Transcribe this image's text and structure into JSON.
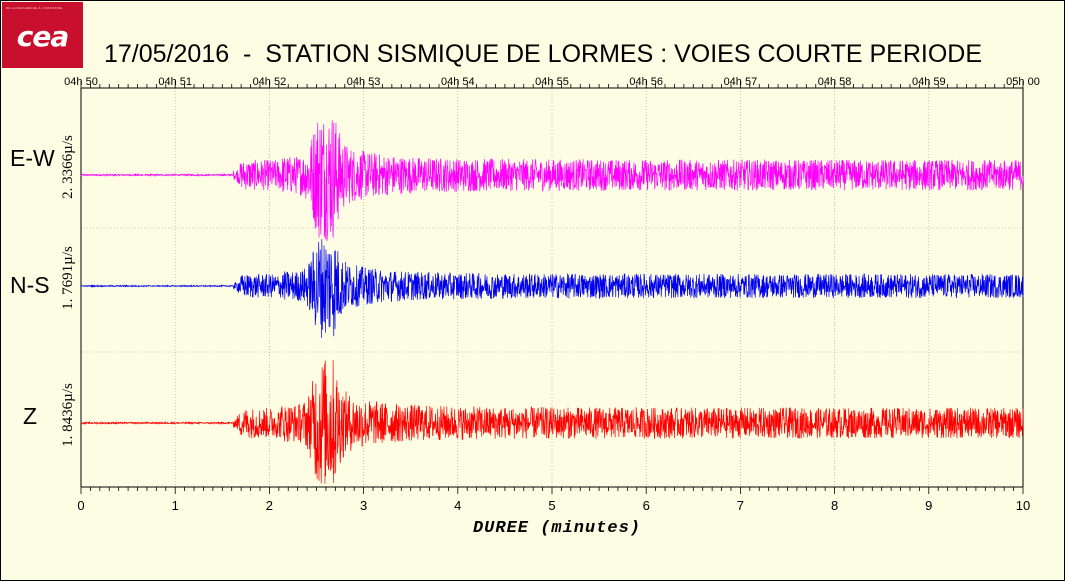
{
  "logo": {
    "text": "cea",
    "tagline": "DE LA RECHERCHE À L'INDUSTRIE"
  },
  "chart_data": {
    "type": "line",
    "title": "17/05/2016  -  STATION SISMIQUE DE LORMES : VOIES COURTE PERIODE",
    "xlabel": "DUREE  (minutes)",
    "xlim": [
      0,
      10
    ],
    "x_ticks": [
      "0",
      "1",
      "2",
      "3",
      "4",
      "5",
      "6",
      "7",
      "8",
      "9",
      "10"
    ],
    "top_time_ticks": [
      "04h 50",
      "04h 51",
      "04h 52",
      "04h 53",
      "04h 54",
      "04h 55",
      "04h 56",
      "04h 57",
      "04h 58",
      "04h 59",
      "05h 00"
    ],
    "grid": true,
    "series": [
      {
        "name": "E-W",
        "scale": "2. 3366µ/s",
        "color": "#ff00ff",
        "onset_min": 1.62,
        "peak_min": 2.58,
        "peak_rel": 1.0
      },
      {
        "name": "N-S",
        "scale": "1. 7691µ/s",
        "color": "#0000ee",
        "onset_min": 1.62,
        "peak_min": 2.58,
        "peak_rel": 1.0
      },
      {
        "name": "Z",
        "scale": "1. 8436µ/s",
        "color": "#ff0000",
        "onset_min": 1.62,
        "peak_min": 2.58,
        "peak_rel": 1.0
      }
    ]
  }
}
